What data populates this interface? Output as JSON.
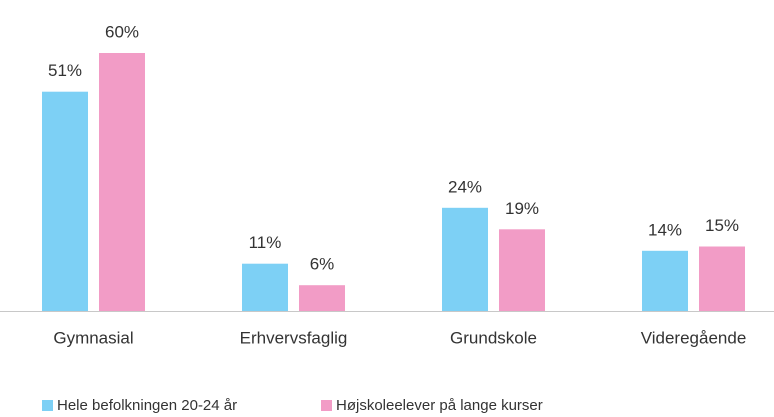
{
  "chart_data": {
    "type": "bar",
    "categories": [
      "Gymnasial",
      "Erhvervsfaglig",
      "Grundskole",
      "Videregående"
    ],
    "series": [
      {
        "name": "Hele befolkningen 20-24 år",
        "color": "#7dd0f5",
        "values": [
          51,
          11,
          24,
          14
        ],
        "value_labels": [
          "51%",
          "11%",
          "24%",
          "14%"
        ]
      },
      {
        "name": "Højskoleelever på lange kurser",
        "color": "#f29cc6",
        "values": [
          60,
          6,
          19,
          15
        ],
        "value_labels": [
          "60%",
          "6%",
          "19%",
          "15%"
        ]
      }
    ]
  }
}
